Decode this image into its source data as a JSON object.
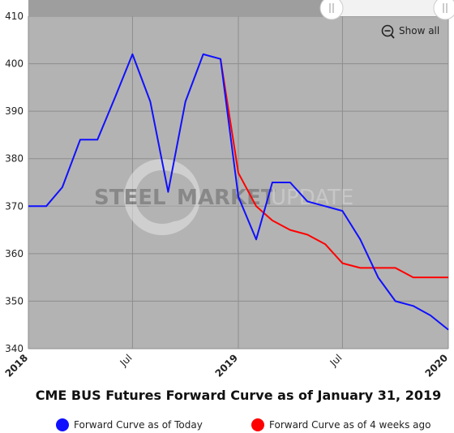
{
  "chart_data": {
    "type": "line",
    "title": "CME BUS Futures Forward Curve as of January 31, 2019",
    "xlabel": "",
    "ylabel": "",
    "ylim": [
      340,
      410
    ],
    "yticks": [
      340,
      350,
      360,
      370,
      380,
      390,
      400,
      410
    ],
    "xlim": [
      "2018-01-01",
      "2020-01-01"
    ],
    "xticks": [
      {
        "label": "2018",
        "date": "2018-01-01",
        "bold": true
      },
      {
        "label": "Jul",
        "date": "2018-07-01",
        "bold": false
      },
      {
        "label": "2019",
        "date": "2019-01-01",
        "bold": true
      },
      {
        "label": "Jul",
        "date": "2019-07-01",
        "bold": false
      },
      {
        "label": "2020",
        "date": "2020-01-01",
        "bold": true
      }
    ],
    "grid": true,
    "legend_position": "bottom",
    "series": [
      {
        "name": "Forward Curve as of Today",
        "color": "#1010ff",
        "points": [
          [
            "2018-01-01",
            370
          ],
          [
            "2018-02-01",
            370
          ],
          [
            "2018-03-01",
            374
          ],
          [
            "2018-04-01",
            384
          ],
          [
            "2018-05-01",
            384
          ],
          [
            "2018-06-01",
            393
          ],
          [
            "2018-07-01",
            402
          ],
          [
            "2018-08-01",
            392
          ],
          [
            "2018-09-01",
            373
          ],
          [
            "2018-10-01",
            392
          ],
          [
            "2018-11-01",
            402
          ],
          [
            "2018-12-01",
            401
          ],
          [
            "2019-01-01",
            372
          ],
          [
            "2019-02-01",
            363
          ],
          [
            "2019-03-01",
            375
          ],
          [
            "2019-04-01",
            375
          ],
          [
            "2019-05-01",
            371
          ],
          [
            "2019-06-01",
            370
          ],
          [
            "2019-07-01",
            369
          ],
          [
            "2019-08-01",
            363
          ],
          [
            "2019-09-01",
            355
          ],
          [
            "2019-10-01",
            350
          ],
          [
            "2019-11-01",
            349
          ],
          [
            "2019-12-01",
            347
          ],
          [
            "2020-01-01",
            344
          ]
        ]
      },
      {
        "name": "Forward Curve as of 4 weeks ago",
        "color": "#ff0000",
        "points": [
          [
            "2018-12-01",
            401
          ],
          [
            "2019-01-01",
            377
          ],
          [
            "2019-02-01",
            370
          ],
          [
            "2019-03-01",
            367
          ],
          [
            "2019-04-01",
            365
          ],
          [
            "2019-05-01",
            364
          ],
          [
            "2019-06-01",
            362
          ],
          [
            "2019-07-01",
            358
          ],
          [
            "2019-08-01",
            357
          ],
          [
            "2019-09-01",
            357
          ],
          [
            "2019-10-01",
            357
          ],
          [
            "2019-11-01",
            355
          ],
          [
            "2019-12-01",
            355
          ],
          [
            "2020-01-01",
            355
          ]
        ]
      }
    ]
  },
  "toolbar": {
    "show_all_label": "Show all",
    "zoom_icon": "zoom-out-icon",
    "handle_icon": "drag-handle-icon"
  },
  "watermark": {
    "word1": "STEEL",
    "word2": "MARKET",
    "word3": "UPDATE"
  },
  "colors": {
    "plot_bg": "#b3b3b3",
    "grid": "#8e8e8e"
  }
}
